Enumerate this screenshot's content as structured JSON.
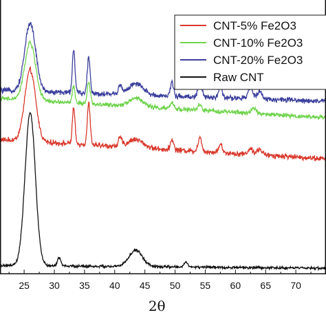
{
  "chart_data": {
    "type": "line",
    "xlabel": "2θ",
    "ylabel": "",
    "xlim": [
      21,
      75
    ],
    "ylim": [
      0,
      100
    ],
    "x_ticks": [
      25,
      30,
      35,
      40,
      45,
      50,
      55,
      60,
      65,
      70
    ],
    "x_tick_labels": [
      "25",
      "30",
      "35",
      "40",
      "45",
      "50",
      "55",
      "60",
      "65",
      "70"
    ],
    "legend_position": "top-right",
    "series": [
      {
        "name": "CNT-5% Fe2O3",
        "color": "#d9372b",
        "baseline": 49,
        "end": 42,
        "noise": 1.2,
        "peaks": [
          {
            "x": 26.0,
            "h": 26,
            "w": 0.9
          },
          {
            "x": 33.2,
            "h": 13,
            "w": 0.22
          },
          {
            "x": 35.7,
            "h": 15,
            "w": 0.24
          },
          {
            "x": 40.9,
            "h": 3,
            "w": 0.3
          },
          {
            "x": 43.5,
            "h": 3,
            "w": 1.2
          },
          {
            "x": 49.5,
            "h": 4,
            "w": 0.25
          },
          {
            "x": 54.1,
            "h": 5,
            "w": 0.3
          },
          {
            "x": 57.5,
            "h": 3,
            "w": 0.3
          },
          {
            "x": 62.5,
            "h": 2,
            "w": 0.4
          },
          {
            "x": 64.0,
            "h": 2,
            "w": 0.4
          }
        ]
      },
      {
        "name": "CNT-10% Fe2O3",
        "color": "#6ed34b",
        "baseline": 64,
        "end": 57,
        "noise": 1.0,
        "peaks": [
          {
            "x": 26.0,
            "h": 21,
            "w": 0.9
          },
          {
            "x": 33.2,
            "h": 6,
            "w": 0.22
          },
          {
            "x": 35.7,
            "h": 8,
            "w": 0.25
          },
          {
            "x": 43.5,
            "h": 3,
            "w": 1.2
          },
          {
            "x": 49.5,
            "h": 2,
            "w": 0.3
          },
          {
            "x": 54.1,
            "h": 2,
            "w": 0.3
          },
          {
            "x": 63.0,
            "h": 2,
            "w": 0.4
          }
        ]
      },
      {
        "name": "CNT-20% Fe2O3",
        "color": "#3b3f9c",
        "baseline": 67,
        "end": 63,
        "noise": 1.2,
        "peaks": [
          {
            "x": 26.0,
            "h": 25,
            "w": 0.9
          },
          {
            "x": 33.2,
            "h": 16,
            "w": 0.22
          },
          {
            "x": 35.7,
            "h": 13,
            "w": 0.24
          },
          {
            "x": 40.9,
            "h": 3,
            "w": 0.3
          },
          {
            "x": 43.5,
            "h": 4,
            "w": 1.2
          },
          {
            "x": 49.5,
            "h": 5,
            "w": 0.25
          },
          {
            "x": 54.1,
            "h": 6,
            "w": 0.3
          },
          {
            "x": 57.5,
            "h": 4,
            "w": 0.3
          },
          {
            "x": 62.5,
            "h": 4,
            "w": 0.4
          },
          {
            "x": 64.0,
            "h": 3,
            "w": 0.4
          }
        ]
      },
      {
        "name": "Raw CNT",
        "color": "#111111",
        "baseline": 3,
        "end": 2,
        "noise": 0.6,
        "peaks": [
          {
            "x": 26.0,
            "h": 56,
            "w": 0.85
          },
          {
            "x": 30.8,
            "h": 3,
            "w": 0.3
          },
          {
            "x": 43.5,
            "h": 6,
            "w": 1.1
          },
          {
            "x": 51.8,
            "h": 2,
            "w": 0.3
          }
        ]
      }
    ]
  }
}
